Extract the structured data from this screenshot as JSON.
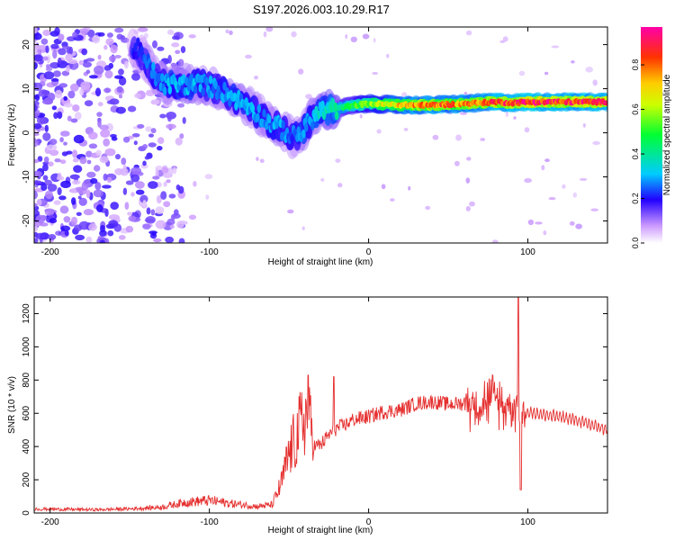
{
  "title": "S197.2026.003.10.29.R17",
  "chart_data": [
    {
      "type": "heatmap",
      "xlabel": "Height of straight line (km)",
      "ylabel": "Frequency (Hz)",
      "xlim": [
        -210,
        150
      ],
      "ylim": [
        -25,
        24
      ],
      "xticks": [
        -200,
        -100,
        0,
        100
      ],
      "yticks": [
        20,
        10,
        0,
        -10,
        -20
      ],
      "ridge_x": [
        -145,
        -130,
        -120,
        -105,
        -95,
        -85,
        -75,
        -65,
        -55,
        -48,
        -42,
        -36,
        -30,
        -20,
        -10,
        0,
        20,
        40,
        60,
        80,
        90,
        100,
        120,
        150
      ],
      "ridge_y": [
        19,
        11,
        11,
        11,
        10,
        8,
        6,
        3,
        1,
        -1,
        0,
        3,
        5,
        5.5,
        6.2,
        6.6,
        6.3,
        6.3,
        6.6,
        7,
        6.8,
        7,
        7,
        7
      ],
      "ridge_amplitude": [
        0.22,
        0.3,
        0.32,
        0.3,
        0.28,
        0.3,
        0.3,
        0.28,
        0.3,
        0.25,
        0.32,
        0.3,
        0.36,
        0.4,
        0.5,
        0.6,
        0.75,
        0.85,
        0.8,
        0.9,
        0.85,
        0.95,
        0.9,
        0.9
      ],
      "colorbar": {
        "label": "Normalized spectral amplitude",
        "ticks": [
          "0.0",
          "0.2",
          "0.4",
          "0.6",
          "0.8"
        ],
        "range": [
          0,
          0.97
        ]
      }
    },
    {
      "type": "line",
      "xlabel": "Height of straight line (km)",
      "ylabel": "SNR (10 * v/v)",
      "xlim": [
        -210,
        150
      ],
      "ylim": [
        0,
        1300
      ],
      "xticks": [
        -200,
        -100,
        0,
        100
      ],
      "yticks": [
        0,
        200,
        400,
        600,
        800,
        1000,
        1200
      ],
      "series": [
        {
          "name": "SNR",
          "color": "#e53030",
          "x": [
            -210,
            -190,
            -170,
            -150,
            -130,
            -115,
            -100,
            -85,
            -70,
            -60,
            -55,
            -50,
            -45,
            -40,
            -35,
            -30,
            -25,
            -20,
            -15,
            -10,
            -5,
            0,
            10,
            20,
            30,
            40,
            50,
            60,
            70,
            80,
            85,
            90,
            93,
            95,
            100,
            110,
            120,
            130,
            140,
            150
          ],
          "values": [
            25,
            22,
            20,
            25,
            35,
            65,
            75,
            55,
            40,
            50,
            140,
            290,
            380,
            480,
            400,
            410,
            470,
            510,
            530,
            560,
            570,
            580,
            610,
            620,
            660,
            670,
            655,
            660,
            670,
            680,
            650,
            660,
            640,
            600,
            610,
            590,
            580,
            560,
            530,
            500
          ]
        }
      ]
    }
  ]
}
